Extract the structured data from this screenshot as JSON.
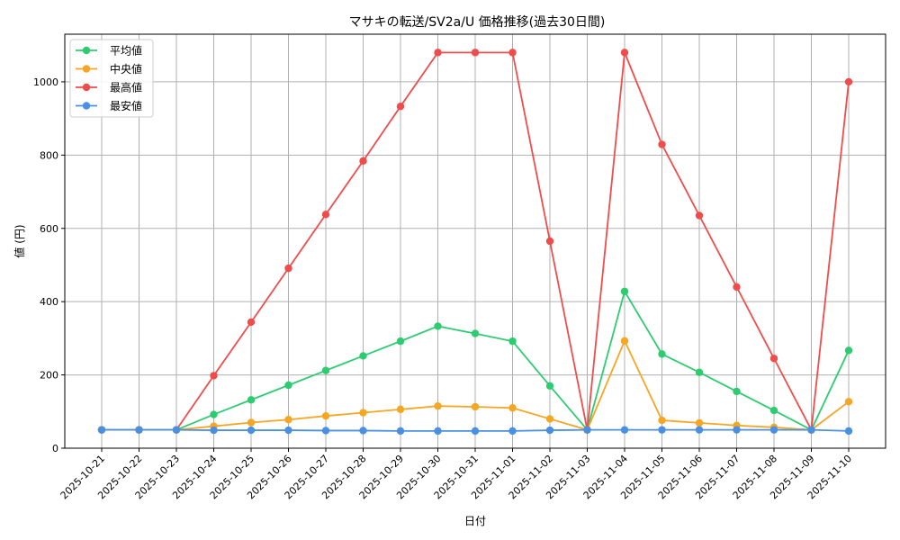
{
  "chart_data": {
    "type": "line",
    "title": "マサキの転送/SV2a/U 価格推移(過去30日間)",
    "xlabel": "日付",
    "ylabel": "値 (円)",
    "ylim": [
      0,
      1130
    ],
    "yticks": [
      0,
      200,
      400,
      600,
      800,
      1000
    ],
    "grid": true,
    "legend_position": "top-left",
    "x": [
      "2025-10-21",
      "2025-10-22",
      "2025-10-23",
      "2025-10-24",
      "2025-10-25",
      "2025-10-26",
      "2025-10-27",
      "2025-10-28",
      "2025-10-29",
      "2025-10-30",
      "2025-10-31",
      "2025-11-01",
      "2025-11-02",
      "2025-11-03",
      "2025-11-04",
      "2025-11-05",
      "2025-11-06",
      "2025-11-07",
      "2025-11-08",
      "2025-11-09",
      "2025-11-10"
    ],
    "series": [
      {
        "name": "平均値",
        "color": "#2ecc71",
        "values": [
          50,
          50,
          50,
          92,
          132,
          172,
          212,
          252,
          292,
          333,
          313,
          292,
          170,
          50,
          428,
          257,
          207,
          155,
          103,
          50,
          267
        ]
      },
      {
        "name": "中央値",
        "color": "#f5a623",
        "values": [
          50,
          50,
          50,
          60,
          70,
          78,
          88,
          97,
          106,
          115,
          113,
          110,
          80,
          50,
          293,
          76,
          69,
          62,
          57,
          50,
          127
        ]
      },
      {
        "name": "最高値",
        "color": "#f04c4c",
        "values": [
          50,
          50,
          50,
          198,
          344,
          491,
          638,
          784,
          933,
          1080,
          1080,
          1080,
          565,
          50,
          1080,
          829,
          635,
          440,
          245,
          50,
          1000
        ]
      },
      {
        "name": "最安値",
        "color": "#4a90e2",
        "values": [
          50,
          50,
          50,
          49,
          49,
          49,
          48,
          48,
          47,
          47,
          47,
          47,
          49,
          50,
          50,
          50,
          50,
          50,
          50,
          50,
          47
        ]
      }
    ]
  }
}
